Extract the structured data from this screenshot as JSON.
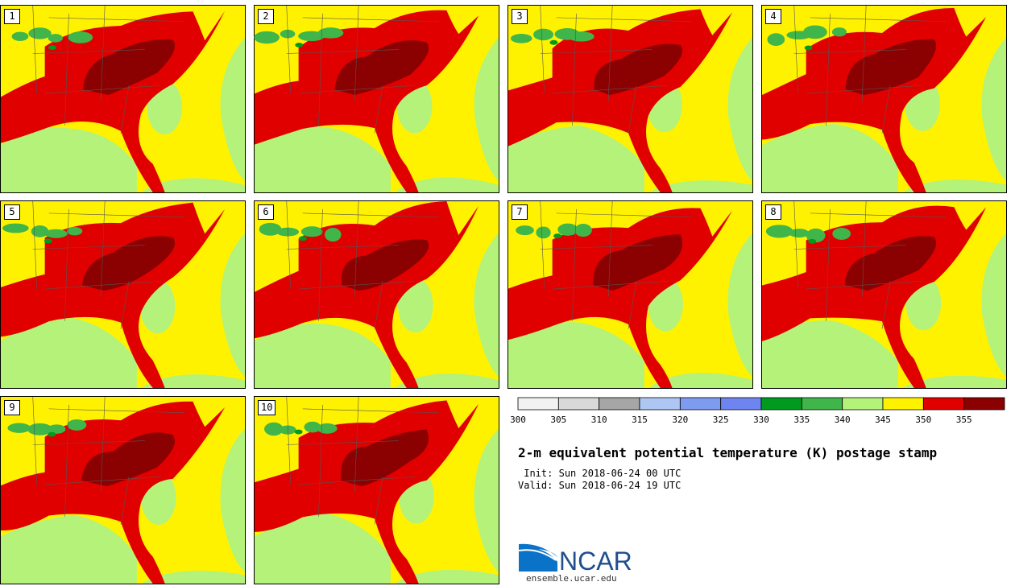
{
  "title": "2-m equivalent potential temperature (K) postage stamp",
  "init_label": " Init:",
  "init_value": "Sun 2018-06-24 00 UTC",
  "valid_label": "Valid:",
  "valid_value": "Sun 2018-06-24 19 UTC",
  "members": [
    "1",
    "2",
    "3",
    "4",
    "5",
    "6",
    "7",
    "8",
    "9",
    "10"
  ],
  "colorbar": {
    "colors": [
      "#f2f2f2",
      "#d9d9d9",
      "#a6a6a6",
      "#aec7f2",
      "#7f9bef",
      "#6e84ee",
      "#009a1e",
      "#3fb54a",
      "#b4f27a",
      "#fff200",
      "#e00000",
      "#8b0000"
    ],
    "ticks": [
      "300",
      "305",
      "310",
      "315",
      "320",
      "325",
      "330",
      "335",
      "340",
      "345",
      "350",
      "355"
    ]
  },
  "colors": {
    "ocean_fill": "#b4f27a",
    "land_fill": "#fff200",
    "high_fill": "#e00000",
    "very_high_fill": "#8b0000",
    "green_fill": "#3fb54a",
    "dark_green_fill": "#009a1e"
  },
  "logo": {
    "text": "NCAR",
    "url": "ensemble.ucar.edu"
  }
}
